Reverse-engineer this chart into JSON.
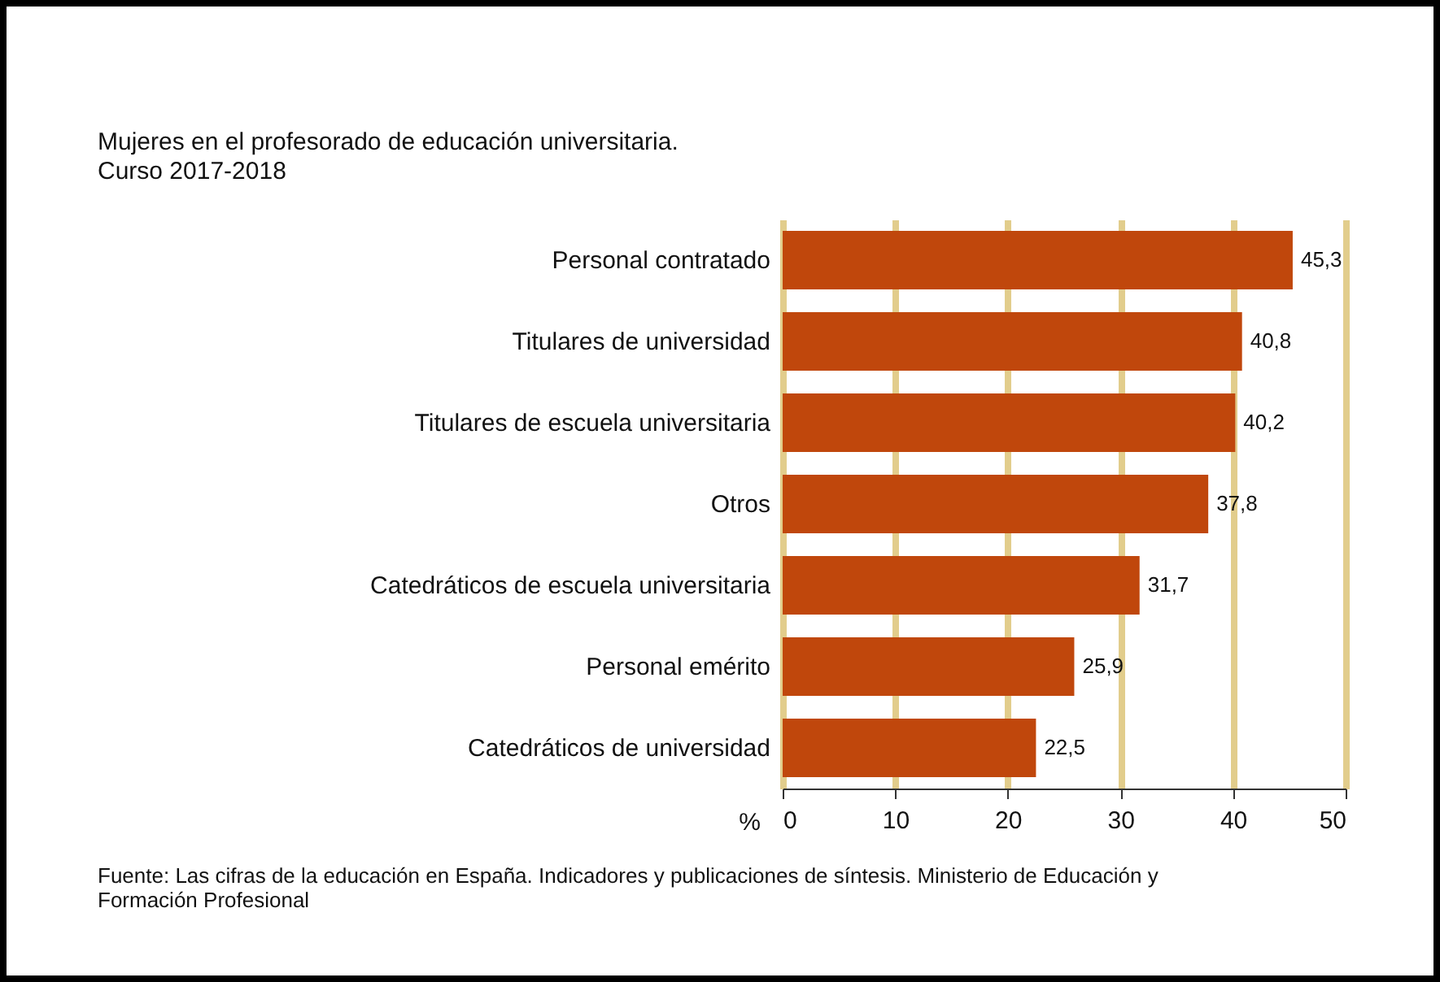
{
  "chart_data": {
    "type": "bar",
    "orientation": "horizontal",
    "title": "Mujeres en el profesorado de educación universitaria.\nCurso 2017-2018",
    "categories": [
      "Personal contratado",
      "Titulares de universidad",
      "Titulares de escuela universitaria",
      "Otros",
      "Catedráticos de escuela universitaria",
      "Personal emérito",
      "Catedráticos de universidad"
    ],
    "values": [
      45.3,
      40.8,
      40.2,
      37.8,
      31.7,
      25.9,
      22.5
    ],
    "value_labels": [
      "45,3",
      "40,8",
      "40,2",
      "37,8",
      "31,7",
      "25,9",
      "22,5"
    ],
    "color": "#c0470c",
    "xlabel": "%",
    "xlim": [
      0,
      50
    ],
    "xticks": [
      0,
      10,
      20,
      30,
      40,
      50
    ],
    "grid": "x",
    "annotations": [
      "Fuente: Las cifras de la educación en España. Indicadores y publicaciones de síntesis. Ministerio de Educación y Formación Profesional"
    ]
  }
}
